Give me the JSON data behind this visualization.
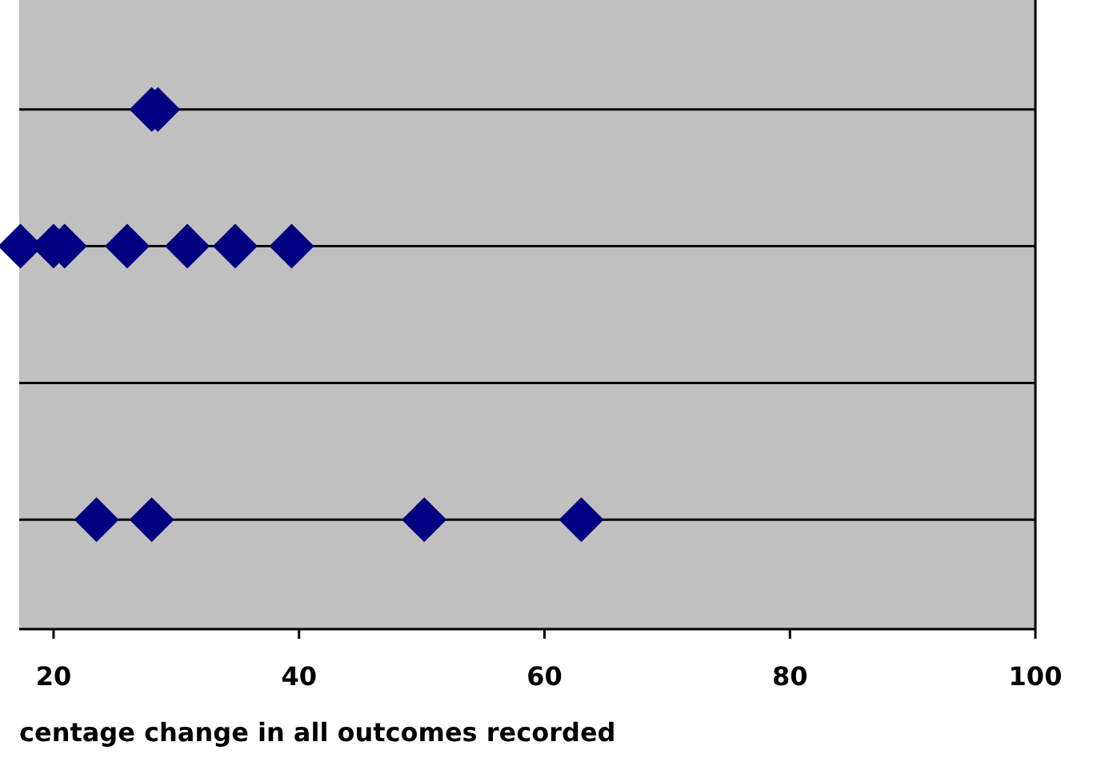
{
  "chart_data": {
    "type": "scatter",
    "orientation": "horizontal",
    "xlabel": "centage change in all outcomes recorded",
    "categories": [
      null,
      null,
      null,
      null
    ],
    "xlim": [
      17.2,
      100
    ],
    "xticks": [
      20,
      40,
      60,
      80,
      100
    ],
    "grid": "y",
    "marker": "diamond",
    "series": [
      {
        "color": "#000080",
        "values": [
          28,
          17.3,
          null,
          23.5
        ]
      },
      {
        "color": "#000080",
        "values": [
          28.5,
          20,
          null,
          28
        ]
      },
      {
        "color": "#000080",
        "values": [
          null,
          20.9,
          null,
          50.2
        ]
      },
      {
        "color": "#000080",
        "values": [
          null,
          26,
          null,
          63
        ]
      },
      {
        "color": "#000080",
        "values": [
          null,
          30.9,
          null,
          null
        ]
      },
      {
        "color": "#000080",
        "values": [
          null,
          34.8,
          null,
          null
        ]
      },
      {
        "color": "#000080",
        "values": [
          null,
          39.4,
          null,
          null
        ]
      }
    ]
  }
}
